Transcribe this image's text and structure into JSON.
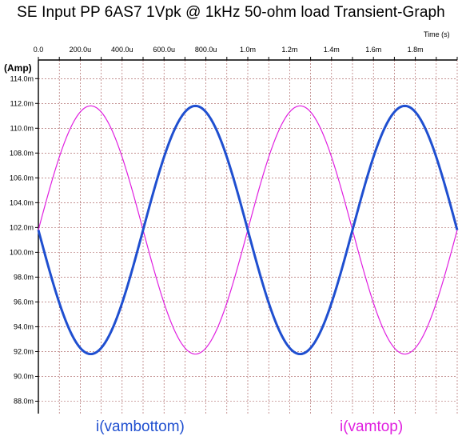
{
  "title": "SE Input PP 6AS7 1Vpk @ 1kHz 50-ohm load Transient-Graph",
  "colors": {
    "background": "#ffffff",
    "grid": "#a05050",
    "axis": "#000000",
    "vambottom": "#1f4fd0",
    "vamtop": "#e020e0"
  },
  "chart_data": {
    "type": "line",
    "title": "SE Input PP 6AS7 1Vpk @ 1kHz 50-ohm load Transient-Graph",
    "xlabel": "Time  (s)",
    "ylabel": "(Amp)",
    "xlim": [
      0,
      0.002
    ],
    "ylim": [
      0.087,
      0.1155
    ],
    "grid": true,
    "x_ticks": [
      {
        "v": 0.0,
        "label": "0.0"
      },
      {
        "v": 0.0002,
        "label": "200.0u"
      },
      {
        "v": 0.0004,
        "label": "400.0u"
      },
      {
        "v": 0.0006,
        "label": "600.0u"
      },
      {
        "v": 0.0008,
        "label": "800.0u"
      },
      {
        "v": 0.001,
        "label": "1.0m"
      },
      {
        "v": 0.0012,
        "label": "1.2m"
      },
      {
        "v": 0.0014,
        "label": "1.4m"
      },
      {
        "v": 0.0016,
        "label": "1.6m"
      },
      {
        "v": 0.0018,
        "label": "1.8m"
      }
    ],
    "y_ticks": [
      {
        "v": 0.114,
        "label": "114.0m"
      },
      {
        "v": 0.112,
        "label": "112.0m"
      },
      {
        "v": 0.11,
        "label": "110.0m"
      },
      {
        "v": 0.108,
        "label": "108.0m"
      },
      {
        "v": 0.106,
        "label": "106.0m"
      },
      {
        "v": 0.104,
        "label": "104.0m"
      },
      {
        "v": 0.102,
        "label": "102.0m"
      },
      {
        "v": 0.1,
        "label": "100.0m"
      },
      {
        "v": 0.098,
        "label": "98.0m"
      },
      {
        "v": 0.096,
        "label": "96.0m"
      },
      {
        "v": 0.094,
        "label": "94.0m"
      },
      {
        "v": 0.092,
        "label": "92.0m"
      },
      {
        "v": 0.09,
        "label": "90.0m"
      },
      {
        "v": 0.088,
        "label": "88.0m"
      }
    ],
    "x": [
      0,
      0.0001,
      0.00025,
      0.0004,
      0.0005,
      0.0006,
      0.00075,
      0.0009,
      0.001,
      0.0011,
      0.00125,
      0.0014,
      0.0015,
      0.0016,
      0.00175,
      0.0019,
      0.002
    ],
    "series": [
      {
        "name": "i(vambottom)",
        "values": [
          0.1018,
          0.096,
          0.0918,
          0.096,
          0.1018,
          0.1076,
          0.1118,
          0.1076,
          0.1018,
          0.096,
          0.0918,
          0.096,
          0.1018,
          0.1076,
          0.1118,
          0.1076,
          0.1018
        ]
      },
      {
        "name": "i(vamtop)",
        "values": [
          0.1018,
          0.1076,
          0.1118,
          0.1076,
          0.1018,
          0.096,
          0.0918,
          0.096,
          0.1018,
          0.1076,
          0.1118,
          0.1076,
          0.1018,
          0.096,
          0.0918,
          0.096,
          0.1018
        ]
      }
    ]
  },
  "legend": [
    {
      "label": "i(vambottom)"
    },
    {
      "label": "i(vamtop)"
    }
  ]
}
